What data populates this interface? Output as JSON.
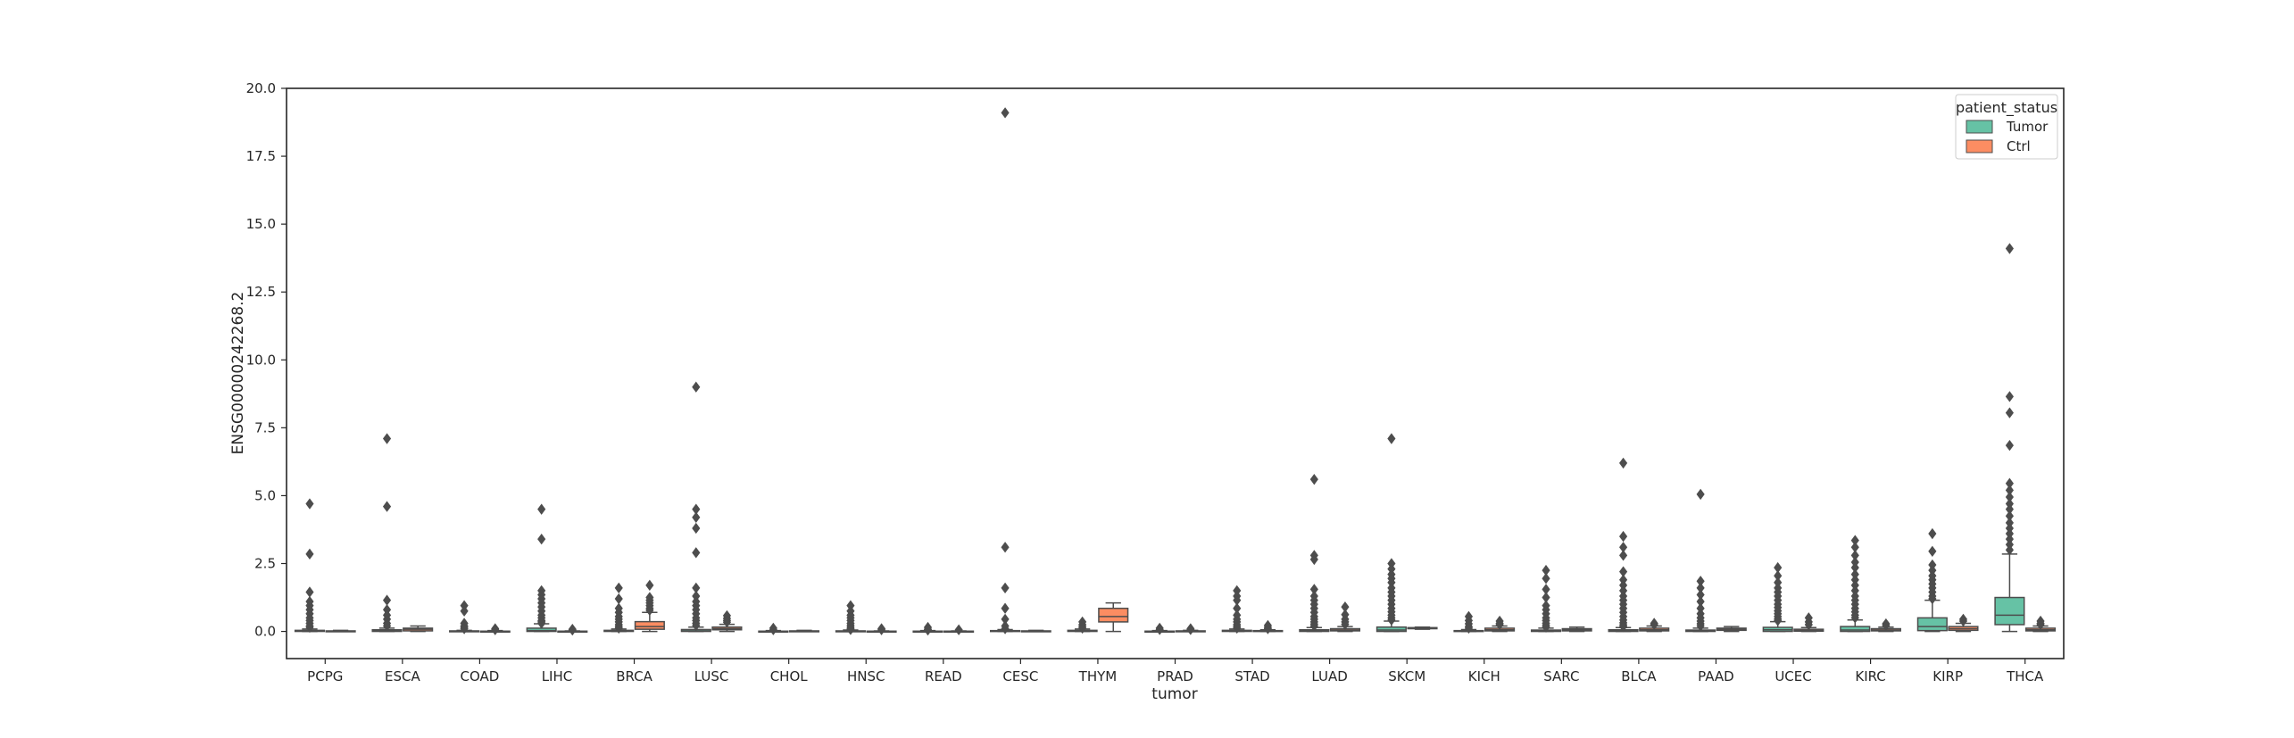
{
  "chart_data": {
    "type": "box",
    "xlabel": "tumor",
    "ylabel": "ENSG00000242268.2",
    "ylim": [
      -1.0,
      20.0
    ],
    "yticks": [
      0.0,
      2.5,
      5.0,
      7.5,
      10.0,
      12.5,
      15.0,
      17.5,
      20.0
    ],
    "ytick_labels": [
      "0.0",
      "2.5",
      "5.0",
      "7.5",
      "10.0",
      "12.5",
      "15.0",
      "17.5",
      "20.0"
    ],
    "grid": false,
    "legend": {
      "title": "patient_status",
      "placement": "top-right",
      "entries": [
        {
          "label": "Tumor",
          "color": "#66c2a5"
        },
        {
          "label": "Ctrl",
          "color": "#fc8d62"
        }
      ]
    },
    "categories": [
      "PCPG",
      "ESCA",
      "COAD",
      "LIHC",
      "BRCA",
      "LUSC",
      "CHOL",
      "HNSC",
      "READ",
      "CESC",
      "THYM",
      "PRAD",
      "STAD",
      "LUAD",
      "SKCM",
      "KICH",
      "SARC",
      "BLCA",
      "PAAD",
      "UCEC",
      "KIRC",
      "KIRP",
      "THCA"
    ],
    "series": [
      {
        "name": "Tumor",
        "color": "#66c2a5",
        "boxes": [
          {
            "min": 0.0,
            "q1": 0.0,
            "median": 0.01,
            "q3": 0.04,
            "max": 0.09,
            "outliers": [
              4.7,
              2.85,
              1.45,
              1.1,
              0.95,
              0.8,
              0.65,
              0.5,
              0.4,
              0.3,
              0.2,
              0.15
            ]
          },
          {
            "min": 0.0,
            "q1": 0.0,
            "median": 0.02,
            "q3": 0.06,
            "max": 0.12,
            "outliers": [
              7.1,
              4.6,
              1.15,
              0.8,
              0.6,
              0.45,
              0.3,
              0.2
            ]
          },
          {
            "min": 0.0,
            "q1": 0.0,
            "median": 0.0,
            "q3": 0.02,
            "max": 0.04,
            "outliers": [
              0.95,
              0.75,
              0.3,
              0.2,
              0.15,
              0.1
            ]
          },
          {
            "min": 0.0,
            "q1": 0.0,
            "median": 0.03,
            "q3": 0.12,
            "max": 0.28,
            "outliers": [
              4.5,
              3.4,
              1.5,
              1.35,
              1.2,
              1.05,
              0.9,
              0.75,
              0.6,
              0.5,
              0.4,
              0.35,
              0.3
            ]
          },
          {
            "min": 0.0,
            "q1": 0.0,
            "median": 0.01,
            "q3": 0.04,
            "max": 0.09,
            "outliers": [
              1.6,
              1.2,
              0.85,
              0.7,
              0.55,
              0.45,
              0.35,
              0.25,
              0.18,
              0.12
            ]
          },
          {
            "min": 0.0,
            "q1": 0.0,
            "median": 0.02,
            "q3": 0.07,
            "max": 0.16,
            "outliers": [
              9.0,
              4.5,
              4.2,
              3.8,
              2.9,
              1.6,
              1.3,
              1.1,
              0.95,
              0.8,
              0.65,
              0.5,
              0.4,
              0.3,
              0.22
            ]
          },
          {
            "min": 0.0,
            "q1": 0.0,
            "median": 0.0,
            "q3": 0.01,
            "max": 0.03,
            "outliers": [
              0.12,
              0.06
            ]
          },
          {
            "min": 0.0,
            "q1": 0.0,
            "median": 0.0,
            "q3": 0.02,
            "max": 0.05,
            "outliers": [
              0.95,
              0.75,
              0.6,
              0.5,
              0.4,
              0.3,
              0.22,
              0.15,
              0.1,
              0.07
            ]
          },
          {
            "min": 0.0,
            "q1": 0.0,
            "median": 0.0,
            "q3": 0.01,
            "max": 0.03,
            "outliers": [
              0.15,
              0.08,
              0.05
            ]
          },
          {
            "min": 0.0,
            "q1": 0.0,
            "median": 0.01,
            "q3": 0.03,
            "max": 0.07,
            "outliers": [
              19.1,
              3.1,
              1.6,
              0.85,
              0.45,
              0.2,
              0.1
            ]
          },
          {
            "min": 0.0,
            "q1": 0.0,
            "median": 0.01,
            "q3": 0.04,
            "max": 0.09,
            "outliers": [
              0.35,
              0.25,
              0.18,
              0.12
            ]
          },
          {
            "min": 0.0,
            "q1": 0.0,
            "median": 0.0,
            "q3": 0.01,
            "max": 0.03,
            "outliers": [
              0.12,
              0.07
            ]
          },
          {
            "min": 0.0,
            "q1": 0.0,
            "median": 0.01,
            "q3": 0.04,
            "max": 0.09,
            "outliers": [
              1.5,
              1.3,
              1.15,
              0.85,
              0.6,
              0.45,
              0.35,
              0.25,
              0.18,
              0.12
            ]
          },
          {
            "min": 0.0,
            "q1": 0.0,
            "median": 0.02,
            "q3": 0.06,
            "max": 0.14,
            "outliers": [
              5.6,
              2.8,
              2.65,
              1.55,
              1.3,
              1.15,
              1.0,
              0.85,
              0.7,
              0.55,
              0.45,
              0.35,
              0.27,
              0.2
            ]
          },
          {
            "min": 0.0,
            "q1": 0.0,
            "median": 0.05,
            "q3": 0.16,
            "max": 0.38,
            "outliers": [
              7.1,
              2.5,
              2.3,
              2.1,
              1.95,
              1.8,
              1.6,
              1.45,
              1.3,
              1.15,
              1.0,
              0.85,
              0.72,
              0.6,
              0.5,
              0.42
            ]
          },
          {
            "min": 0.0,
            "q1": 0.0,
            "median": 0.01,
            "q3": 0.03,
            "max": 0.07,
            "outliers": [
              0.55,
              0.4,
              0.28,
              0.18,
              0.12
            ]
          },
          {
            "min": 0.0,
            "q1": 0.0,
            "median": 0.02,
            "q3": 0.05,
            "max": 0.12,
            "outliers": [
              2.25,
              1.95,
              1.55,
              1.25,
              0.95,
              0.8,
              0.65,
              0.5,
              0.4,
              0.3,
              0.22,
              0.16
            ]
          },
          {
            "min": 0.0,
            "q1": 0.0,
            "median": 0.02,
            "q3": 0.06,
            "max": 0.14,
            "outliers": [
              6.2,
              3.5,
              3.1,
              2.8,
              2.2,
              1.9,
              1.7,
              1.5,
              1.3,
              1.15,
              1.0,
              0.85,
              0.7,
              0.55,
              0.42,
              0.32,
              0.24,
              0.18
            ]
          },
          {
            "min": 0.0,
            "q1": 0.0,
            "median": 0.02,
            "q3": 0.05,
            "max": 0.12,
            "outliers": [
              5.05,
              1.85,
              1.6,
              1.35,
              1.1,
              0.85,
              0.65,
              0.5,
              0.38,
              0.28,
              0.2
            ]
          },
          {
            "min": 0.0,
            "q1": 0.0,
            "median": 0.06,
            "q3": 0.15,
            "max": 0.36,
            "outliers": [
              2.35,
              2.05,
              1.8,
              1.6,
              1.45,
              1.3,
              1.15,
              1.0,
              0.88,
              0.76,
              0.65,
              0.55,
              0.46,
              0.4
            ]
          },
          {
            "min": 0.0,
            "q1": 0.0,
            "median": 0.05,
            "q3": 0.18,
            "max": 0.42,
            "outliers": [
              3.35,
              3.1,
              2.8,
              2.55,
              2.35,
              2.1,
              1.9,
              1.7,
              1.5,
              1.3,
              1.15,
              1.0,
              0.85,
              0.72,
              0.6,
              0.5
            ]
          },
          {
            "min": 0.0,
            "q1": 0.03,
            "median": 0.18,
            "q3": 0.5,
            "max": 1.15,
            "outliers": [
              3.6,
              2.95,
              2.45,
              2.25,
              2.05,
              1.9,
              1.75,
              1.6,
              1.45,
              1.3,
              1.2
            ]
          },
          {
            "min": 0.0,
            "q1": 0.25,
            "median": 0.6,
            "q3": 1.25,
            "max": 2.85,
            "outliers": [
              14.1,
              8.65,
              8.05,
              6.85,
              5.45,
              5.2,
              4.95,
              4.7,
              4.5,
              4.25,
              4.0,
              3.8,
              3.6,
              3.4,
              3.2,
              3.0
            ]
          }
        ]
      },
      {
        "name": "Ctrl",
        "color": "#fc8d62",
        "boxes": [
          {
            "min": 0.0,
            "q1": 0.0,
            "median": 0.01,
            "q3": 0.02,
            "max": 0.04,
            "outliers": []
          },
          {
            "min": 0.0,
            "q1": 0.02,
            "median": 0.08,
            "q3": 0.12,
            "max": 0.2,
            "outliers": []
          },
          {
            "min": 0.0,
            "q1": 0.0,
            "median": 0.0,
            "q3": 0.01,
            "max": 0.03,
            "outliers": [
              0.1,
              0.06
            ]
          },
          {
            "min": 0.0,
            "q1": 0.0,
            "median": 0.0,
            "q3": 0.01,
            "max": 0.02,
            "outliers": [
              0.08,
              0.05
            ]
          },
          {
            "min": 0.0,
            "q1": 0.08,
            "median": 0.18,
            "q3": 0.36,
            "max": 0.7,
            "outliers": [
              1.7,
              1.25,
              1.15,
              1.05,
              0.95,
              0.85,
              0.78
            ]
          },
          {
            "min": 0.0,
            "q1": 0.06,
            "median": 0.1,
            "q3": 0.16,
            "max": 0.26,
            "outliers": [
              0.58,
              0.48,
              0.4,
              0.34
            ]
          },
          {
            "min": 0.0,
            "q1": 0.0,
            "median": 0.01,
            "q3": 0.02,
            "max": 0.04,
            "outliers": []
          },
          {
            "min": 0.0,
            "q1": 0.0,
            "median": 0.0,
            "q3": 0.01,
            "max": 0.02,
            "outliers": [
              0.1,
              0.06
            ]
          },
          {
            "min": 0.0,
            "q1": 0.0,
            "median": 0.0,
            "q3": 0.01,
            "max": 0.02,
            "outliers": [
              0.06
            ]
          },
          {
            "min": 0.0,
            "q1": 0.0,
            "median": 0.01,
            "q3": 0.02,
            "max": 0.04,
            "outliers": []
          },
          {
            "min": 0.0,
            "q1": 0.35,
            "median": 0.55,
            "q3": 0.85,
            "max": 1.05,
            "outliers": []
          },
          {
            "min": 0.0,
            "q1": 0.0,
            "median": 0.01,
            "q3": 0.02,
            "max": 0.04,
            "outliers": [
              0.1,
              0.07
            ]
          },
          {
            "min": 0.0,
            "q1": 0.0,
            "median": 0.01,
            "q3": 0.03,
            "max": 0.06,
            "outliers": [
              0.22,
              0.15,
              0.1
            ]
          },
          {
            "min": 0.0,
            "q1": 0.02,
            "median": 0.05,
            "q3": 0.1,
            "max": 0.18,
            "outliers": [
              0.9,
              0.62,
              0.45,
              0.35,
              0.26
            ]
          },
          {
            "min": 0.08,
            "q1": 0.1,
            "median": 0.12,
            "q3": 0.14,
            "max": 0.16,
            "outliers": []
          },
          {
            "min": 0.0,
            "q1": 0.02,
            "median": 0.06,
            "q3": 0.12,
            "max": 0.2,
            "outliers": [
              0.38,
              0.3,
              0.25
            ]
          },
          {
            "min": 0.0,
            "q1": 0.02,
            "median": 0.06,
            "q3": 0.1,
            "max": 0.16,
            "outliers": []
          },
          {
            "min": 0.0,
            "q1": 0.02,
            "median": 0.06,
            "q3": 0.12,
            "max": 0.2,
            "outliers": [
              0.3,
              0.25
            ]
          },
          {
            "min": 0.0,
            "q1": 0.04,
            "median": 0.08,
            "q3": 0.12,
            "max": 0.18,
            "outliers": []
          },
          {
            "min": 0.0,
            "q1": 0.01,
            "median": 0.04,
            "q3": 0.08,
            "max": 0.14,
            "outliers": [
              0.5,
              0.35,
              0.25
            ]
          },
          {
            "min": 0.0,
            "q1": 0.02,
            "median": 0.05,
            "q3": 0.1,
            "max": 0.16,
            "outliers": [
              0.28,
              0.22
            ]
          },
          {
            "min": 0.0,
            "q1": 0.04,
            "median": 0.1,
            "q3": 0.18,
            "max": 0.3,
            "outliers": [
              0.45,
              0.38
            ]
          },
          {
            "min": 0.0,
            "q1": 0.02,
            "median": 0.06,
            "q3": 0.12,
            "max": 0.2,
            "outliers": [
              0.38,
              0.3,
              0.25
            ]
          }
        ]
      }
    ]
  }
}
